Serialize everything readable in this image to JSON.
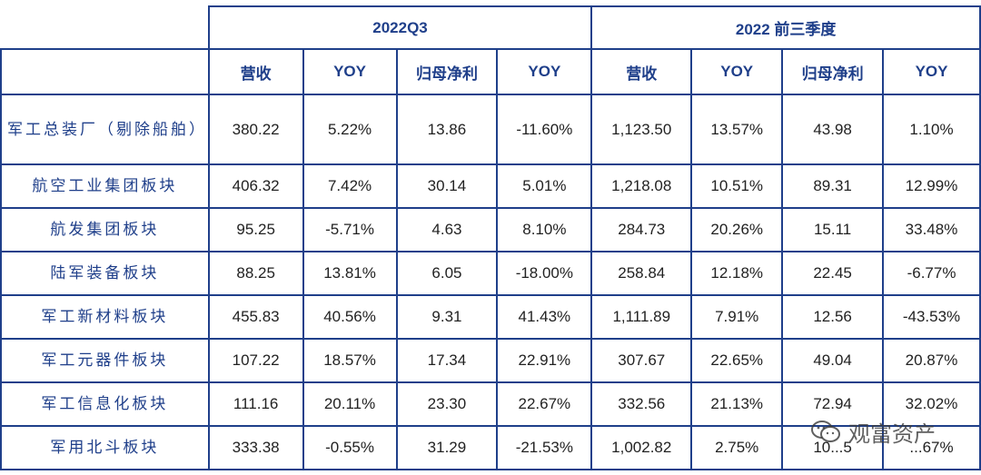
{
  "header": {
    "group1": "2022Q3",
    "group2": "2022 前三季度",
    "columns": [
      "营收",
      "YOY",
      "归母净利",
      "YOY",
      "营收",
      "YOY",
      "归母净利",
      "YOY"
    ]
  },
  "rows": [
    {
      "label": "军工总装厂（剔除船舶）",
      "cells": [
        "380.22",
        "5.22%",
        "13.86",
        "-11.60%",
        "1,123.50",
        "13.57%",
        "43.98",
        "1.10%"
      ]
    },
    {
      "label": "航空工业集团板块",
      "cells": [
        "406.32",
        "7.42%",
        "30.14",
        "5.01%",
        "1,218.08",
        "10.51%",
        "89.31",
        "12.99%"
      ]
    },
    {
      "label": "航发集团板块",
      "cells": [
        "95.25",
        "-5.71%",
        "4.63",
        "8.10%",
        "284.73",
        "20.26%",
        "15.11",
        "33.48%"
      ]
    },
    {
      "label": "陆军装备板块",
      "cells": [
        "88.25",
        "13.81%",
        "6.05",
        "-18.00%",
        "258.84",
        "12.18%",
        "22.45",
        "-6.77%"
      ]
    },
    {
      "label": "军工新材料板块",
      "cells": [
        "455.83",
        "40.56%",
        "9.31",
        "41.43%",
        "1,111.89",
        "7.91%",
        "12.56",
        "-43.53%"
      ]
    },
    {
      "label": "军工元器件板块",
      "cells": [
        "107.22",
        "18.57%",
        "17.34",
        "22.91%",
        "307.67",
        "22.65%",
        "49.04",
        "20.87%"
      ]
    },
    {
      "label": "军工信息化板块",
      "cells": [
        "111.16",
        "20.11%",
        "23.30",
        "22.67%",
        "332.56",
        "21.13%",
        "72.94",
        "32.02%"
      ]
    },
    {
      "label": "军用北斗板块",
      "cells": [
        "333.38",
        "-0.55%",
        "31.29",
        "-21.53%",
        "1,002.82",
        "2.75%",
        "10...5",
        "...67%"
      ]
    }
  ],
  "watermark": {
    "text": "观富资产",
    "icon": "wechat-icon"
  }
}
